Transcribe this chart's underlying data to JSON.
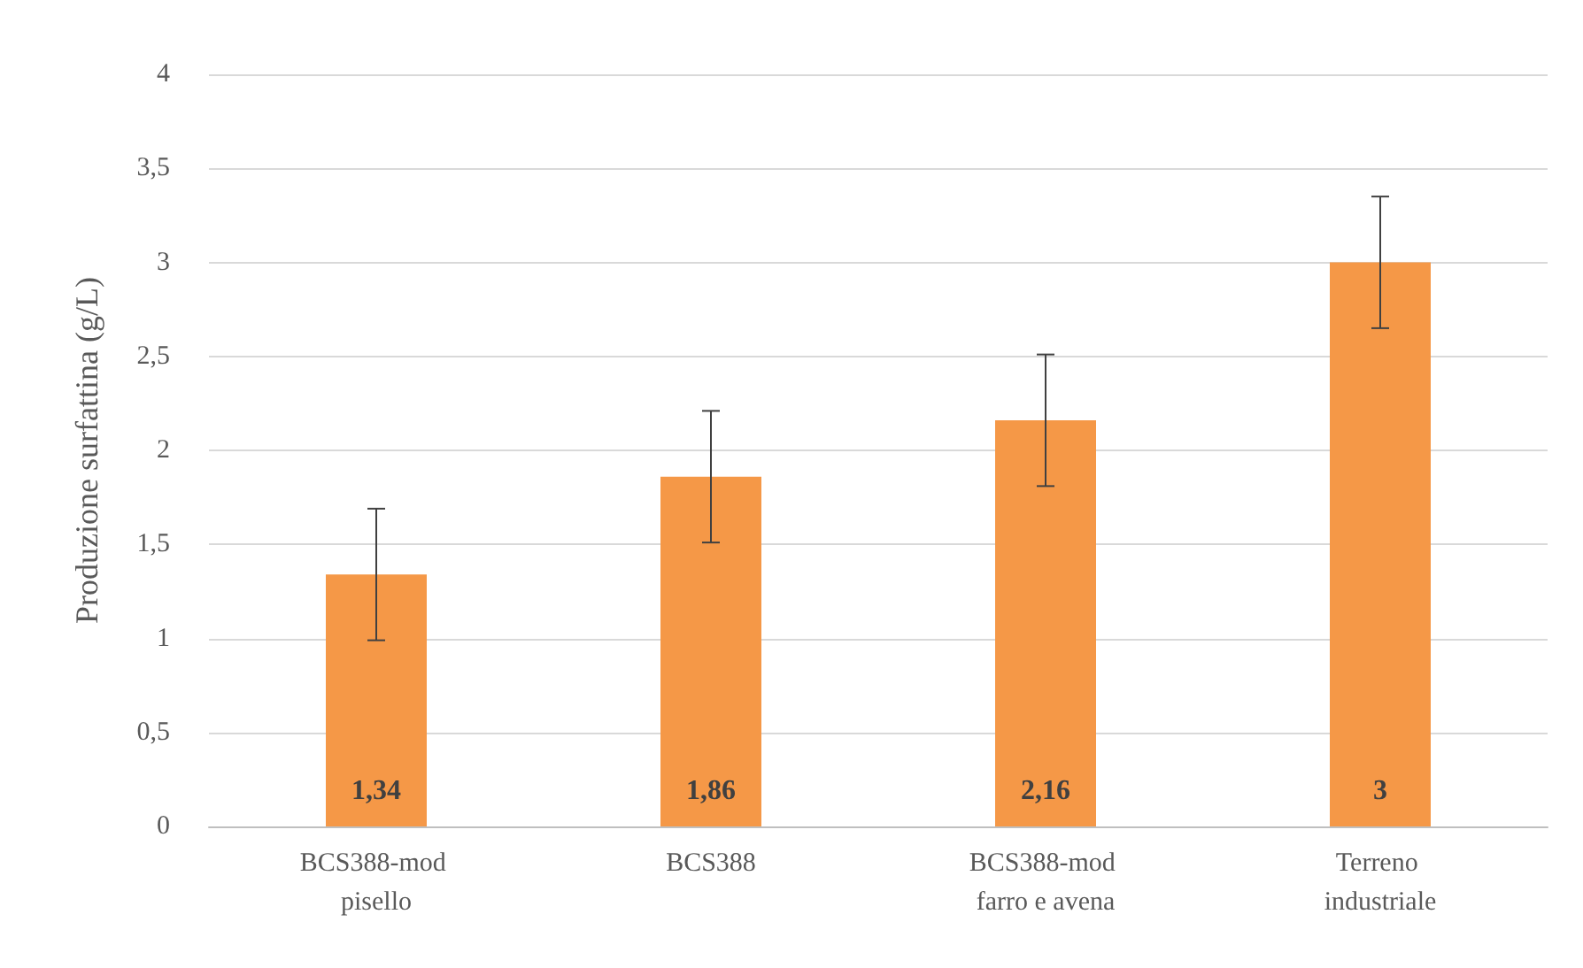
{
  "chart_data": {
    "type": "bar",
    "ylabel": "Produzione surfattina (g/L)",
    "categories": [
      "BCS388-mod pisello",
      "BCS388",
      "BCS388-mod farro e avena",
      "Terreno industriale"
    ],
    "values": [
      1.34,
      1.86,
      2.16,
      3
    ],
    "value_labels": [
      "1,34",
      "1,86",
      "2,16",
      "3"
    ],
    "errors": [
      0.35,
      0.35,
      0.35,
      0.35
    ],
    "color": "#f59847",
    "ylim": [
      0,
      4
    ],
    "yticks": [
      0,
      {
        "value": 0.5,
        "label": "0,5"
      },
      1,
      {
        "value": 1.5,
        "label": "1,5"
      },
      2,
      {
        "value": 2.5,
        "label": "2,5"
      },
      3,
      {
        "value": 3.5,
        "label": "3,5"
      },
      4
    ],
    "grid": "y"
  }
}
